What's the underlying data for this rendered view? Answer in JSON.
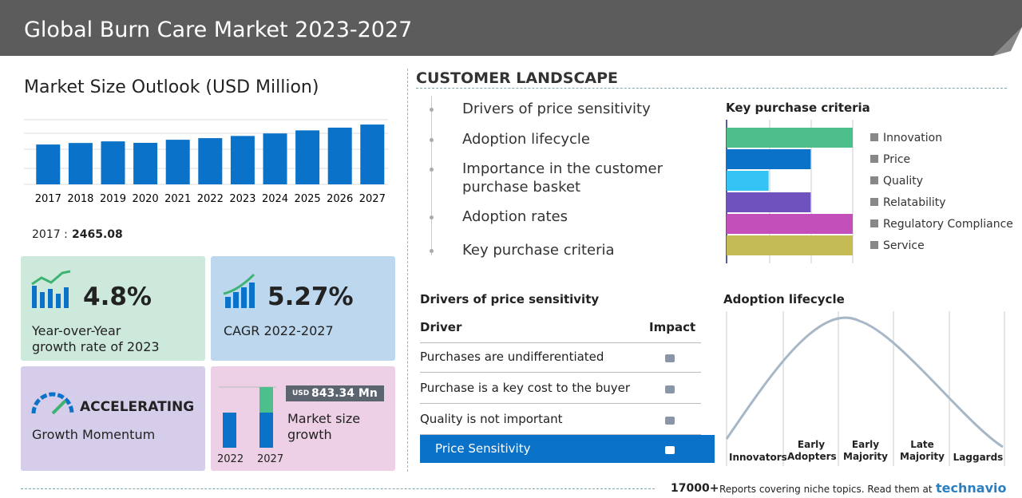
{
  "header": {
    "title": "Global Burn Care Market 2023-2027"
  },
  "market_size": {
    "title": "Market Size Outlook (USD Million)",
    "chart_data": {
      "type": "bar",
      "categories": [
        "2017",
        "2018",
        "2019",
        "2020",
        "2021",
        "2022",
        "2023",
        "2024",
        "2025",
        "2026",
        "2027"
      ],
      "values": [
        2465.08,
        2560,
        2660,
        2570,
        2760,
        2860,
        2995,
        3150,
        3340,
        3510,
        3700
      ],
      "color": "#0a72c8",
      "ylim": [
        0,
        4000
      ]
    },
    "base_label": "2017 :",
    "base_value": "2465.08"
  },
  "kpis": [
    {
      "value": "4.8%",
      "label": "Year-over-Year growth rate of 2023"
    },
    {
      "value": "5.27%",
      "label": "CAGR 2022-2027"
    },
    {
      "value": "ACCELERATING",
      "label": "Growth Momentum"
    },
    {
      "currency": "USD",
      "value": "843.34 Mn",
      "label": "Market size growth",
      "years": [
        "2022",
        "2027"
      ]
    }
  ],
  "customer_landscape": {
    "title": "CUSTOMER LANDSCAPE",
    "items": [
      "Drivers of price sensitivity",
      "Adoption lifecycle",
      "Importance in the customer purchase basket",
      "Adoption rates",
      "Key purchase criteria"
    ]
  },
  "key_purchase_criteria": {
    "title": "Key purchase criteria",
    "chart_data": {
      "type": "bar",
      "orientation": "horizontal",
      "categories": [
        "Innovation",
        "Price",
        "Quality",
        "Relatability",
        "Regulatory Compliance",
        "Service"
      ],
      "values": [
        3,
        2,
        1,
        2,
        3,
        3
      ],
      "colors": [
        "#4dbf8c",
        "#0a72c8",
        "#35c3f5",
        "#6f52bd",
        "#c34fba",
        "#c4bb55"
      ],
      "xlim": [
        0,
        3
      ]
    }
  },
  "drivers": {
    "title": "Drivers of price sensitivity",
    "columns": [
      "Driver",
      "Impact"
    ],
    "rows": [
      "Purchases are undifferentiated",
      "Purchase is a key cost to the buyer",
      "Quality is not important",
      "Price Sensitivity"
    ]
  },
  "adoption": {
    "title": "Adoption lifecycle",
    "stages": [
      "Innovators",
      "Early Adopters",
      "Early Majority",
      "Late Majority",
      "Laggards"
    ]
  },
  "footer": {
    "count": "17000+",
    "text": "Reports covering niche topics. Read them at",
    "brand": "technavio"
  }
}
